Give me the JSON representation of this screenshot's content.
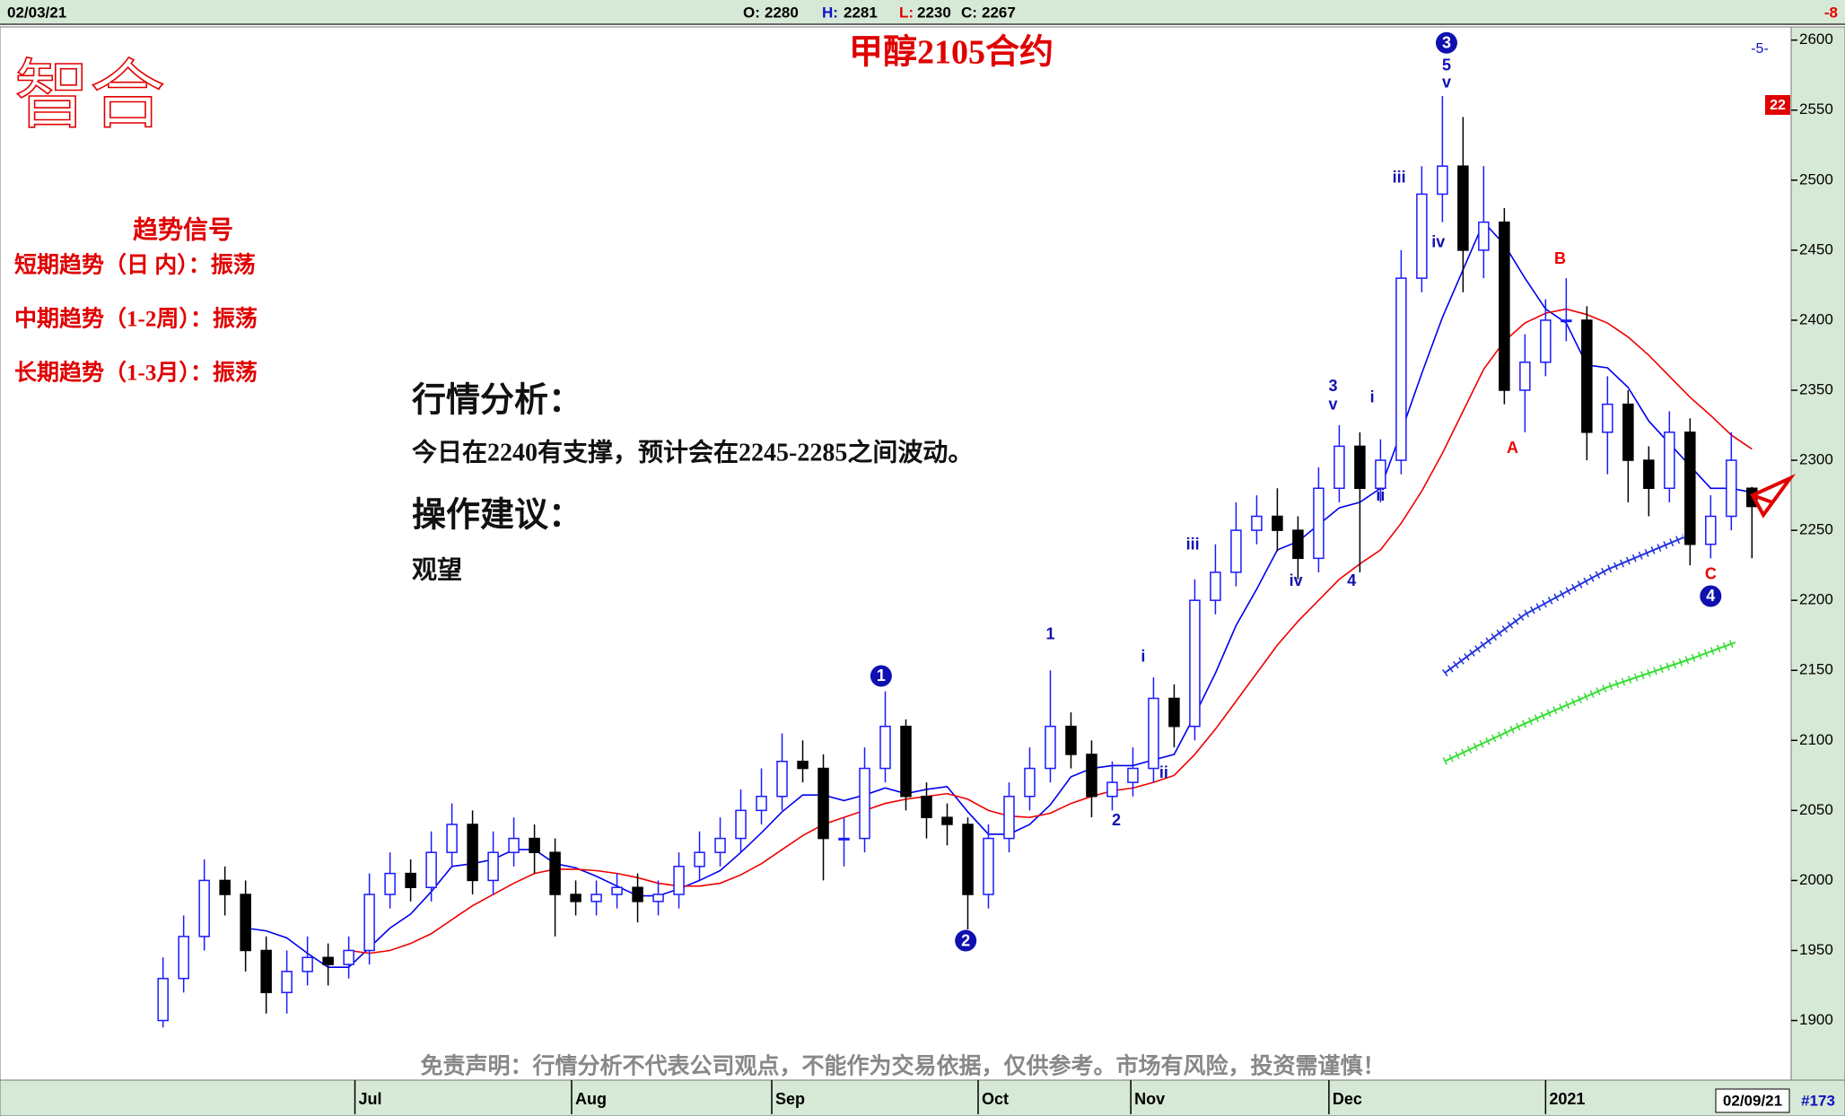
{
  "header": {
    "date": "02/03/21",
    "ohlc": [
      {
        "label": "O:",
        "value": 2280
      },
      {
        "label": "H:",
        "value": 2281
      },
      {
        "label": "L:",
        "value": 2230
      },
      {
        "label": "C:",
        "value": 2267
      }
    ],
    "change": -8
  },
  "panel": {
    "logo": "智合",
    "signal_title": "趋势信号",
    "signals": [
      "短期趋势（日 内）：振荡",
      "中期趋势（1-2周）：振荡",
      "长期趋势（1-3月）：振荡"
    ],
    "analysis_title": "行情分析：",
    "analysis": "今日在2240有支撑，预计会在2245-2285之间波动。",
    "advice_title": "操作建议：",
    "advice": "观望",
    "disclaimer": "免责声明：行情分析不代表公司观点，不能作为交易依据，仅供参考。市场有风险，投资需谨慎！"
  },
  "tags": {
    "cycle": "-5-",
    "count": 22,
    "bar_count": "#173",
    "last_date": "02/09/21"
  },
  "chart_data": {
    "type": "candlestick",
    "title": "甲醇2105合约",
    "up_color": "#1a1aff",
    "down_color": "#000000",
    "open": [
      1900,
      1930,
      1960,
      2000,
      1990,
      1950,
      1920,
      1935,
      1945,
      1940,
      1950,
      1990,
      2005,
      1995,
      2020,
      2040,
      2000,
      2020,
      2030,
      2020,
      1990,
      1985,
      1990,
      1995,
      1985,
      1990,
      2010,
      2020,
      2030,
      2050,
      2060,
      2085,
      2080,
      2030,
      2030,
      2080,
      2110,
      2060,
      2045,
      2040,
      1990,
      2030,
      2060,
      2080,
      2110,
      2090,
      2060,
      2070,
      2080,
      2130,
      2110,
      2200,
      2220,
      2250,
      2260,
      2250,
      2230,
      2280,
      2310,
      2280,
      2300,
      2430,
      2490,
      2510,
      2450,
      2470,
      2350,
      2370,
      2400,
      2400,
      2320,
      2340,
      2300,
      2280,
      2320,
      2240,
      2260,
      2280
    ],
    "high": [
      1945,
      1975,
      2015,
      2010,
      2000,
      1960,
      1950,
      1960,
      1955,
      1960,
      2005,
      2020,
      2015,
      2035,
      2055,
      2050,
      2035,
      2045,
      2040,
      2030,
      2000,
      2000,
      2005,
      2005,
      2000,
      2020,
      2035,
      2045,
      2065,
      2080,
      2105,
      2100,
      2090,
      2045,
      2095,
      2135,
      2115,
      2070,
      2055,
      2045,
      2040,
      2070,
      2095,
      2150,
      2120,
      2100,
      2085,
      2095,
      2145,
      2140,
      2215,
      2240,
      2270,
      2275,
      2280,
      2260,
      2295,
      2325,
      2320,
      2315,
      2450,
      2510,
      2560,
      2545,
      2510,
      2480,
      2390,
      2415,
      2430,
      2410,
      2360,
      2350,
      2310,
      2335,
      2330,
      2275,
      2320,
      2281
    ],
    "low": [
      1895,
      1920,
      1950,
      1975,
      1935,
      1905,
      1905,
      1925,
      1925,
      1930,
      1940,
      1980,
      1985,
      1985,
      2010,
      1990,
      1990,
      2010,
      2005,
      1960,
      1975,
      1975,
      1980,
      1970,
      1975,
      1980,
      2000,
      2010,
      2020,
      2040,
      2050,
      2070,
      2000,
      2010,
      2020,
      2070,
      2050,
      2030,
      2025,
      1965,
      1980,
      2020,
      2050,
      2070,
      2080,
      2045,
      2050,
      2060,
      2070,
      2095,
      2100,
      2190,
      2210,
      2240,
      2235,
      2215,
      2220,
      2270,
      2220,
      2270,
      2290,
      2420,
      2470,
      2420,
      2430,
      2340,
      2320,
      2360,
      2385,
      2300,
      2290,
      2270,
      2260,
      2270,
      2225,
      2230,
      2250,
      2230
    ],
    "close": [
      1930,
      1960,
      2000,
      1990,
      1950,
      1920,
      1935,
      1945,
      1940,
      1950,
      1990,
      2005,
      1995,
      2020,
      2040,
      2000,
      2020,
      2030,
      2020,
      1990,
      1985,
      1990,
      1995,
      1985,
      1990,
      2010,
      2020,
      2030,
      2050,
      2060,
      2085,
      2080,
      2030,
      2030,
      2080,
      2110,
      2060,
      2045,
      2040,
      1990,
      2030,
      2060,
      2080,
      2110,
      2090,
      2060,
      2070,
      2080,
      2130,
      2110,
      2200,
      2220,
      2250,
      2260,
      2250,
      2230,
      2280,
      2310,
      2280,
      2300,
      2430,
      2490,
      2510,
      2450,
      2470,
      2350,
      2370,
      2400,
      2400,
      2320,
      2340,
      2300,
      2280,
      2320,
      2240,
      2260,
      2300,
      2267
    ],
    "moving_averages": [
      {
        "color": "#0000ee",
        "values": [
          null,
          null,
          null,
          null,
          1966,
          1964,
          1959,
          1948,
          1938,
          1938,
          1952,
          1966,
          1976,
          1992,
          2010,
          2012,
          2015,
          2022,
          2022,
          2012,
          2009,
          2003,
          1996,
          1989,
          1989,
          1994,
          2000,
          2007,
          2020,
          2034,
          2049,
          2061,
          2061,
          2057,
          2061,
          2066,
          2062,
          2065,
          2067,
          2049,
          2033,
          2033,
          2040,
          2054,
          2074,
          2080,
          2082,
          2082,
          2086,
          2090,
          2118,
          2148,
          2182,
          2208,
          2236,
          2242,
          2254,
          2266,
          2270,
          2280,
          2320,
          2362,
          2402,
          2436,
          2470,
          2454,
          2430,
          2408,
          2398,
          2368,
          2366,
          2352,
          2328,
          2312,
          2296,
          2280,
          2280,
          2277
        ]
      },
      {
        "color": "#ee0000",
        "values": [
          null,
          null,
          null,
          null,
          null,
          null,
          null,
          null,
          null,
          1950,
          1948,
          1950,
          1955,
          1962,
          1972,
          1982,
          1990,
          1998,
          2005,
          2008,
          2008,
          2007,
          2005,
          2002,
          1998,
          1996,
          1996,
          1998,
          2004,
          2012,
          2022,
          2032,
          2040,
          2045,
          2050,
          2055,
          2058,
          2060,
          2062,
          2058,
          2050,
          2046,
          2045,
          2048,
          2055,
          2060,
          2064,
          2066,
          2070,
          2075,
          2090,
          2108,
          2128,
          2148,
          2168,
          2185,
          2200,
          2215,
          2226,
          2236,
          2255,
          2278,
          2305,
          2335,
          2365,
          2385,
          2398,
          2405,
          2408,
          2404,
          2398,
          2388,
          2375,
          2360,
          2345,
          2332,
          2318,
          2308
        ]
      }
    ],
    "projections": [
      {
        "color": "#2233dd",
        "x": [
          62.1,
          66,
          70,
          73.7
        ],
        "values": [
          2148,
          2190,
          2222,
          2245
        ]
      },
      {
        "color": "#33dd33",
        "x": [
          62.1,
          66,
          70,
          74,
          76.2
        ],
        "values": [
          2085,
          2112,
          2138,
          2158,
          2170
        ]
      }
    ],
    "annotations": [
      {
        "text": "1",
        "x": 34.8,
        "y": 2146,
        "circled": true,
        "color": "#1010b0"
      },
      {
        "text": "2",
        "x": 38.9,
        "y": 1957,
        "circled": true,
        "color": "#1010b0"
      },
      {
        "text": "3",
        "x": 62.2,
        "y": 2598,
        "circled": true,
        "color": "#1010b0"
      },
      {
        "text": "4",
        "x": 75,
        "y": 2203,
        "circled": true,
        "color": "#1010b0"
      },
      {
        "text": "5",
        "x": 62.2,
        "y": 2582,
        "circled": false,
        "color": "#1010b0"
      },
      {
        "text": "v",
        "x": 62.2,
        "y": 2570,
        "circled": false,
        "color": "#1010b0"
      },
      {
        "text": "iii",
        "x": 59.9,
        "y": 2502,
        "circled": false,
        "color": "#1010b0"
      },
      {
        "text": "iv",
        "x": 61.8,
        "y": 2456,
        "circled": false,
        "color": "#1010b0"
      },
      {
        "text": "B",
        "x": 67.7,
        "y": 2444,
        "circled": false,
        "color": "#ee0000"
      },
      {
        "text": "A",
        "x": 65.4,
        "y": 2309,
        "circled": false,
        "color": "#ee0000"
      },
      {
        "text": "C",
        "x": 75,
        "y": 2219,
        "circled": false,
        "color": "#ee0000"
      },
      {
        "text": "3",
        "x": 56.7,
        "y": 2353,
        "circled": false,
        "color": "#1010b0"
      },
      {
        "text": "v",
        "x": 56.7,
        "y": 2340,
        "circled": false,
        "color": "#1010b0"
      },
      {
        "text": "i",
        "x": 58.6,
        "y": 2345,
        "circled": false,
        "color": "#1010b0"
      },
      {
        "text": "ii",
        "x": 59,
        "y": 2275,
        "circled": false,
        "color": "#1010b0"
      },
      {
        "text": "4",
        "x": 57.6,
        "y": 2214,
        "circled": false,
        "color": "#1010b0"
      },
      {
        "text": "iv",
        "x": 54.9,
        "y": 2214,
        "circled": false,
        "color": "#1010b0"
      },
      {
        "text": "iii",
        "x": 49.9,
        "y": 2240,
        "circled": false,
        "color": "#1010b0"
      },
      {
        "text": "1",
        "x": 43,
        "y": 2176,
        "circled": false,
        "color": "#1010b0"
      },
      {
        "text": "2",
        "x": 46.2,
        "y": 2043,
        "circled": false,
        "color": "#1010b0"
      },
      {
        "text": "i",
        "x": 47.5,
        "y": 2160,
        "circled": false,
        "color": "#1010b0"
      },
      {
        "text": "ii",
        "x": 48.5,
        "y": 2077,
        "circled": false,
        "color": "#1010b0"
      }
    ],
    "xlim": [
      -7.9,
      78.9
    ],
    "xticks": [
      {
        "value": 9.3,
        "label": "Jul"
      },
      {
        "value": 19.8,
        "label": "Aug"
      },
      {
        "value": 29.5,
        "label": "Sep"
      },
      {
        "value": 39.5,
        "label": "Oct"
      },
      {
        "value": 46.9,
        "label": "Nov"
      },
      {
        "value": 56.5,
        "label": "Dec"
      },
      {
        "value": 67,
        "label": "2021"
      }
    ],
    "ylim": [
      1860,
      2603
    ],
    "yticks": [
      1900,
      1950,
      2000,
      2050,
      2100,
      2150,
      2200,
      2250,
      2300,
      2350,
      2400,
      2450,
      2500,
      2550,
      2600
    ]
  }
}
